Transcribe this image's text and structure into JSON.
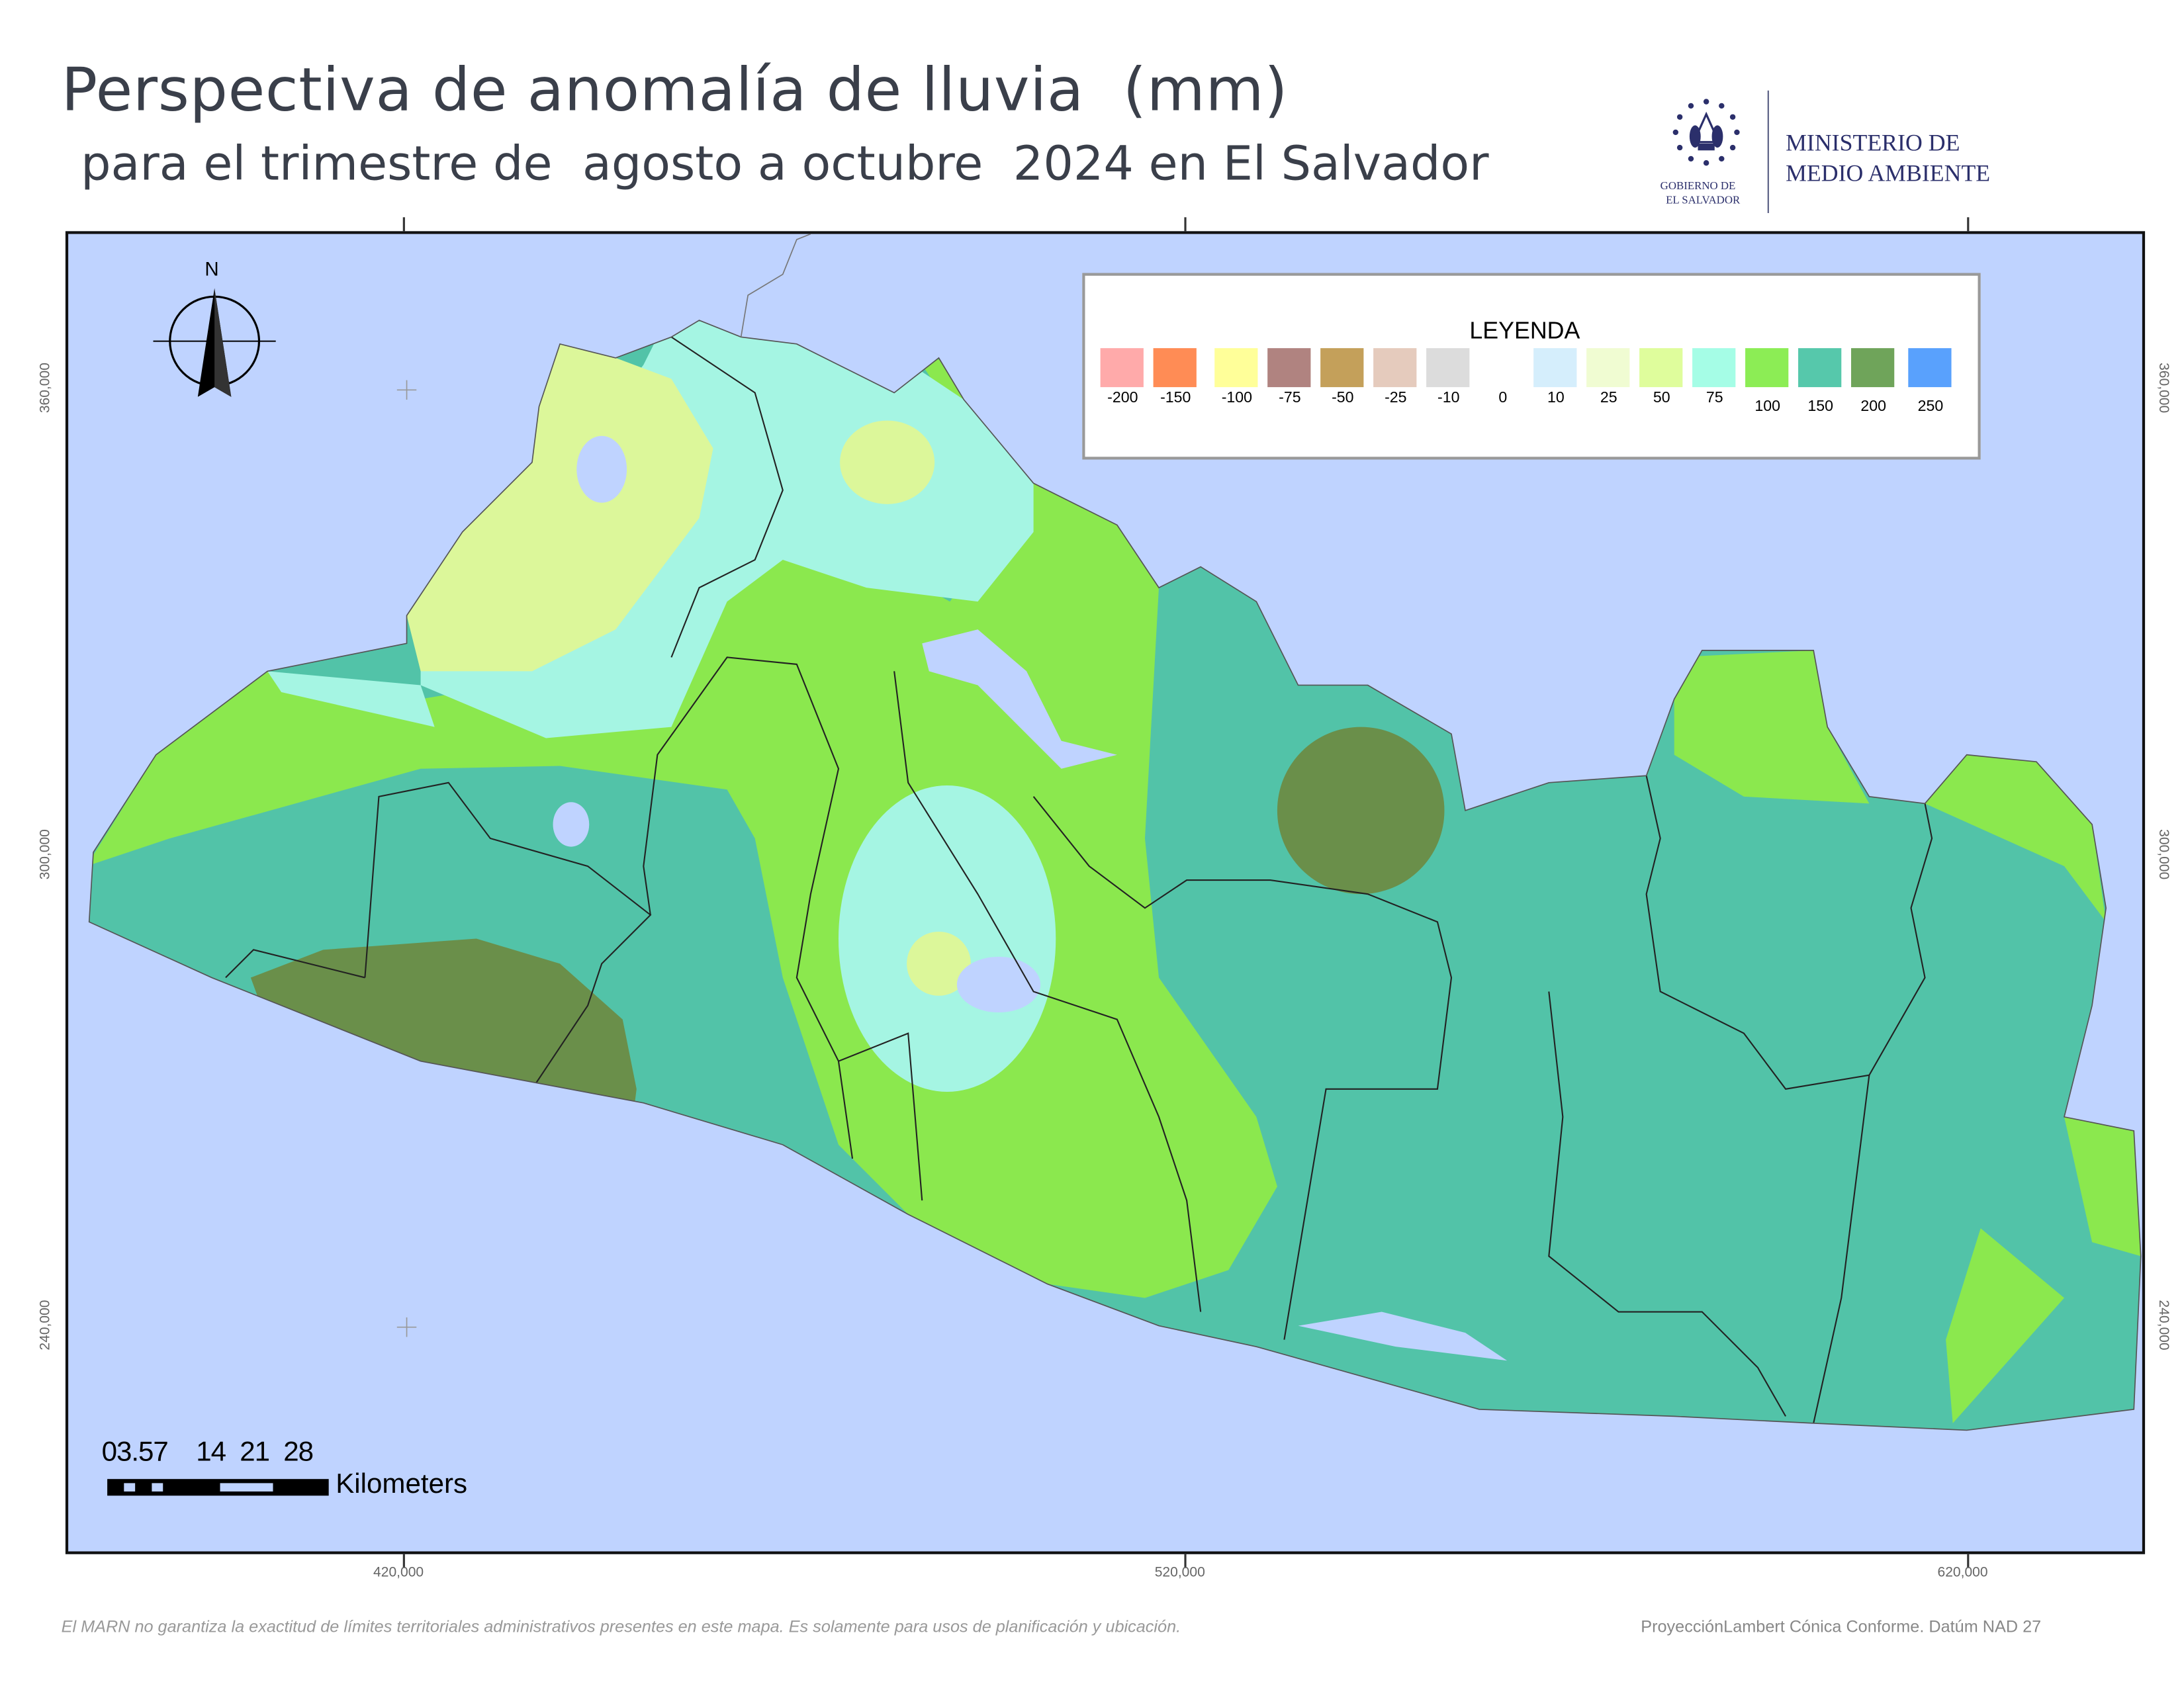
{
  "header": {
    "title": "Perspectiva de anomalía de lluvia  (mm)",
    "subtitle": "para el trimestre de  agosto a octubre  2024 en El Salvador"
  },
  "logo": {
    "ministry_line1": "MINISTERIO DE",
    "ministry_line2": "MEDIO AMBIENTE",
    "gov_line1": "GOBIERNO DE",
    "gov_line2": "EL SALVADOR",
    "color": "#2b2f6b"
  },
  "map": {
    "north_label": "N",
    "x_ticks": [
      "420,000",
      "520,000",
      "620,000"
    ],
    "y_ticks": [
      "360,000",
      "300,000",
      "240,000"
    ],
    "colors": {
      "ocean": "#bfd3ff",
      "v50": "#dcf79a",
      "v75": "#a5f5e3",
      "v100": "#8be84e",
      "v150": "#52c3a8",
      "v200": "#6a8f4a"
    }
  },
  "legend": {
    "title": "LEYENDA",
    "items": [
      {
        "label": "-200",
        "color": "#ffaaaa"
      },
      {
        "label": "-150",
        "color": "#ff8c55"
      },
      {
        "label": "-100",
        "color": "#ffff99"
      },
      {
        "label": "-75",
        "color": "#b08380"
      },
      {
        "label": "-50",
        "color": "#c4a05a"
      },
      {
        "label": "-25",
        "color": "#e5cbbd"
      },
      {
        "label": "-10",
        "color": "#dcdcdc"
      },
      {
        "label": "0",
        "color": "#ffffff"
      },
      {
        "label": "10",
        "color": "#d5eefc"
      },
      {
        "label": "25",
        "color": "#f0fcd2"
      },
      {
        "label": "50",
        "color": "#dffd9c"
      },
      {
        "label": "75",
        "color": "#a5fde6"
      },
      {
        "label": "100",
        "color": "#8ced55"
      },
      {
        "label": "150",
        "color": "#56c8ab"
      },
      {
        "label": "200",
        "color": "#6fa45a"
      },
      {
        "label": "250",
        "color": "#59a1fd"
      }
    ]
  },
  "scale_bar": {
    "numbers": "03.57    14  21  28",
    "unit": "Kilometers"
  },
  "footer": {
    "disclaimer": "El MARN no garantiza la exactitud de límites territoriales administrativos presentes en este mapa. Es solamente para usos de planificación y ubicación.",
    "projection": "ProyecciónLambert Cónica Conforme. Datúm NAD 27"
  }
}
